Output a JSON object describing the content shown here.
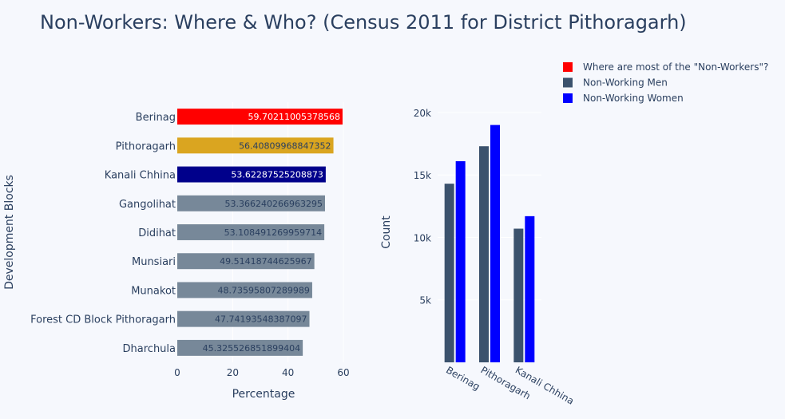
{
  "title": "Non-Workers: Where & Who? (Census 2011 for District Pithoragarh)",
  "legend": [
    {
      "label": "Where are most of the \"Non-Workers\"?",
      "color": "#ff0000"
    },
    {
      "label": "Non-Working Men",
      "color": "#3b526d"
    },
    {
      "label": "Non-Working Women",
      "color": "#0000ff"
    }
  ],
  "chart_data": [
    {
      "type": "bar",
      "orientation": "horizontal",
      "categories": [
        "Berinag",
        "Pithoragarh",
        "Kanali Chhina",
        "Gangolihat",
        "Didihat",
        "Munsiari",
        "Munakot",
        "Forest CD Block Pithoragarh",
        "Dharchula"
      ],
      "values": [
        59.70211005378568,
        56.40809968847352,
        53.62287525208873,
        53.366240266963295,
        53.10849126995971,
        49.51418744625967,
        48.73595807289989,
        47.74193548387097,
        45.325526851899404
      ],
      "data_labels": [
        "59.70211005378568",
        "56.40809968847352",
        "53.62287525208873",
        "53.366240266963295",
        "53.108491269959714",
        "49.51418744625967",
        "48.73595807289989",
        "47.74193548387097",
        "45.325526851899404"
      ],
      "colors": [
        "#ff0000",
        "#daa520",
        "#00008b",
        "#778899",
        "#778899",
        "#778899",
        "#778899",
        "#778899",
        "#778899"
      ],
      "label_colors": [
        "#ffffff",
        "#2a3f5f",
        "#ffffff",
        "#2a3f5f",
        "#2a3f5f",
        "#2a3f5f",
        "#2a3f5f",
        "#2a3f5f",
        "#2a3f5f"
      ],
      "xlabel": "Percentage",
      "ylabel": "Development Blocks",
      "xlim": [
        0,
        60
      ],
      "xticks": [
        0,
        20,
        40,
        60
      ],
      "grid": true
    },
    {
      "type": "bar",
      "categories": [
        "Berinag",
        "Pithoragarh",
        "Kanali Chhina"
      ],
      "series": [
        {
          "name": "Non-Working Men",
          "values": [
            14300,
            17300,
            10700
          ],
          "color": "#3b526d"
        },
        {
          "name": "Non-Working Women",
          "values": [
            16100,
            19000,
            11700
          ],
          "color": "#0000ff"
        }
      ],
      "xlabel": "",
      "ylabel": "Count",
      "ylim": [
        0,
        20700
      ],
      "yticks": [
        5000,
        10000,
        15000,
        20000
      ],
      "ytick_labels": [
        "5k",
        "10k",
        "15k",
        "20k"
      ],
      "grid": true
    }
  ]
}
